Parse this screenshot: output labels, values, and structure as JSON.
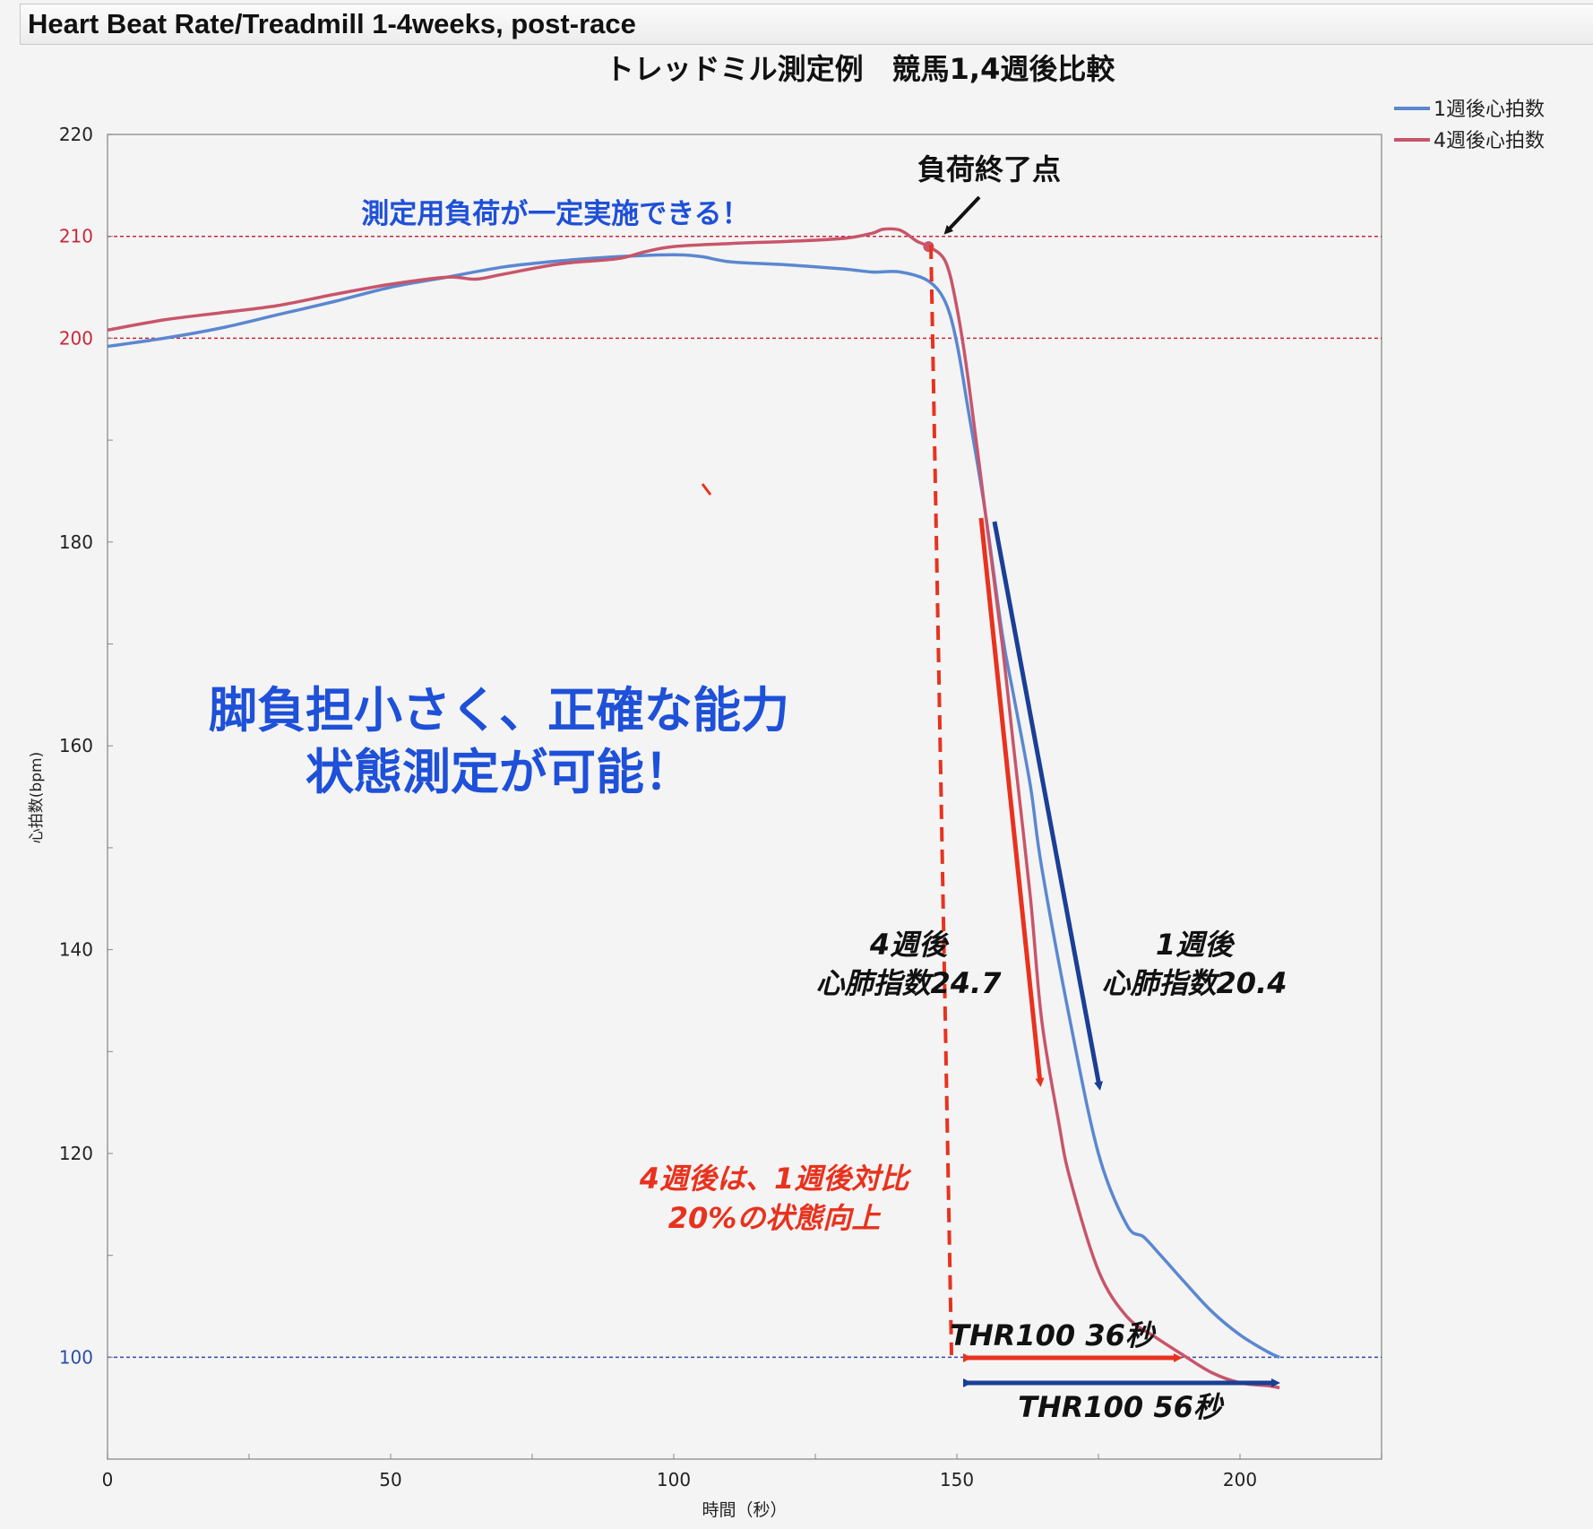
{
  "window": {
    "title": "Heart Beat Rate/Treadmill 1-4weeks, post-race"
  },
  "chart_data": {
    "type": "line",
    "title": "トレッドミル測定例　競馬1,4週後比較",
    "xlabel": "時間（秒）",
    "ylabel": "心拍数(bpm)",
    "xlim": [
      0,
      225
    ],
    "ylim": [
      90,
      220
    ],
    "x_ticks": [
      "0",
      "50",
      "100",
      "150",
      "200"
    ],
    "y_ticks": [
      "100",
      "120",
      "140",
      "160",
      "180",
      "200",
      "210",
      "220"
    ],
    "legend_position": "top-right",
    "series": [
      {
        "name": "1週後心拍数",
        "color": "#5b87d0",
        "x": [
          0,
          10,
          20,
          30,
          40,
          50,
          60,
          70,
          80,
          90,
          100,
          105,
          110,
          120,
          130,
          135,
          140,
          145,
          148,
          150,
          152,
          155,
          158,
          160,
          163,
          165,
          170,
          175,
          180,
          183,
          186,
          190,
          195,
          200,
          205,
          207
        ],
        "values": [
          199.2,
          200,
          201,
          202.3,
          203.6,
          205,
          206,
          207,
          207.6,
          208,
          208.2,
          208,
          207.5,
          207.2,
          206.8,
          206.5,
          206.5,
          205.6,
          203.5,
          199.5,
          193,
          183,
          171,
          165,
          156,
          148,
          133,
          120,
          113,
          111.8,
          110,
          107.5,
          104.5,
          102.2,
          100.5,
          100
        ]
      },
      {
        "name": "4週後心拍数",
        "color": "#c8556a",
        "x": [
          0,
          10,
          20,
          30,
          40,
          50,
          60,
          65,
          70,
          80,
          90,
          95,
          100,
          110,
          120,
          130,
          135,
          137,
          140,
          143,
          145,
          148,
          150,
          152,
          155,
          158,
          160,
          163,
          165,
          168,
          170,
          175,
          180,
          185,
          190,
          195,
          200,
          205,
          207
        ],
        "values": [
          200.8,
          201.8,
          202.5,
          203.2,
          204.3,
          205.3,
          206,
          205.8,
          206.3,
          207.3,
          207.8,
          208.5,
          209,
          209.3,
          209.5,
          209.8,
          210.3,
          210.7,
          210.6,
          209.5,
          209,
          207.5,
          203,
          196,
          183,
          170,
          160,
          145,
          133,
          123,
          117.5,
          108.5,
          104,
          102,
          100.2,
          98.5,
          97.5,
          97.2,
          97
        ]
      }
    ],
    "reference_lines": [
      {
        "axis": "y",
        "value": 210,
        "color": "#c8283a"
      },
      {
        "axis": "y",
        "value": 200,
        "color": "#c8283a"
      },
      {
        "axis": "y",
        "value": 100,
        "color": "#2c4da4"
      }
    ],
    "load_end_point": {
      "x": 145,
      "y": 209
    },
    "annotations": {
      "load_constant": "測定用負荷が一定実施できる！",
      "load_end": "負荷終了点",
      "main_line1": "脚負担小さく、正確な能力",
      "main_line2": "状態測定が可能！",
      "week4_line1": "4週後",
      "week4_line2": "心肺指数24.7",
      "week1_line1": "1週後",
      "week1_line2": "心肺指数20.4",
      "improvement_line1": "4週後は、1週後対比",
      "improvement_line2": "20%の状態向上",
      "thr_36": "THR100 36秒",
      "thr_56": "THR100 56秒"
    },
    "colors": {
      "annotation_blue": "#1e50d8",
      "annotation_red": "#e8321e",
      "arrow_red": "#e8321e",
      "arrow_navy": "#1a3f96",
      "dashed_red": "#e8321e"
    }
  }
}
